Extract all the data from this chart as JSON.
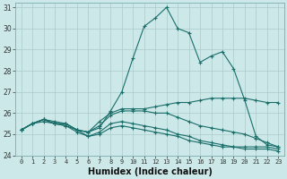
{
  "xlabel": "Humidex (Indice chaleur)",
  "xlim": [
    -0.5,
    23.5
  ],
  "ylim": [
    24,
    31.2
  ],
  "yticks": [
    24,
    25,
    26,
    27,
    28,
    29,
    30,
    31
  ],
  "xticks": [
    0,
    1,
    2,
    3,
    4,
    5,
    6,
    7,
    8,
    9,
    10,
    11,
    12,
    13,
    14,
    15,
    16,
    17,
    18,
    19,
    20,
    21,
    22,
    23
  ],
  "background_color": "#cce8e8",
  "grid_color": "#aacccc",
  "line_color": "#1a6e6a",
  "lines": [
    [
      25.2,
      25.5,
      25.7,
      25.6,
      25.5,
      25.2,
      25.1,
      25.3,
      26.1,
      27.0,
      28.6,
      30.1,
      30.5,
      31.0,
      30.0,
      29.8,
      28.4,
      28.7,
      28.9,
      28.1,
      26.6,
      24.9,
      24.5,
      24.4
    ],
    [
      25.2,
      25.5,
      25.7,
      25.5,
      25.5,
      25.2,
      25.1,
      25.6,
      26.0,
      26.2,
      26.2,
      26.2,
      26.3,
      26.4,
      26.5,
      26.5,
      26.6,
      26.7,
      26.7,
      26.7,
      26.7,
      26.6,
      26.5,
      26.5
    ],
    [
      25.2,
      25.5,
      25.7,
      25.5,
      25.5,
      25.2,
      25.1,
      25.4,
      25.9,
      26.1,
      26.1,
      26.1,
      26.0,
      26.0,
      25.8,
      25.6,
      25.4,
      25.3,
      25.2,
      25.1,
      25.0,
      24.8,
      24.6,
      24.4
    ],
    [
      25.2,
      25.5,
      25.7,
      25.5,
      25.4,
      25.2,
      24.9,
      25.1,
      25.5,
      25.6,
      25.5,
      25.4,
      25.3,
      25.2,
      25.0,
      24.9,
      24.7,
      24.6,
      24.5,
      24.4,
      24.4,
      24.4,
      24.4,
      24.3
    ],
    [
      25.2,
      25.5,
      25.6,
      25.5,
      25.4,
      25.1,
      24.9,
      25.0,
      25.3,
      25.4,
      25.3,
      25.2,
      25.1,
      25.0,
      24.9,
      24.7,
      24.6,
      24.5,
      24.4,
      24.4,
      24.3,
      24.3,
      24.3,
      24.2
    ]
  ],
  "tick_fontsize": 5,
  "xlabel_fontsize": 7,
  "linewidth": 0.8,
  "markersize": 2.5,
  "markeredgewidth": 0.8
}
